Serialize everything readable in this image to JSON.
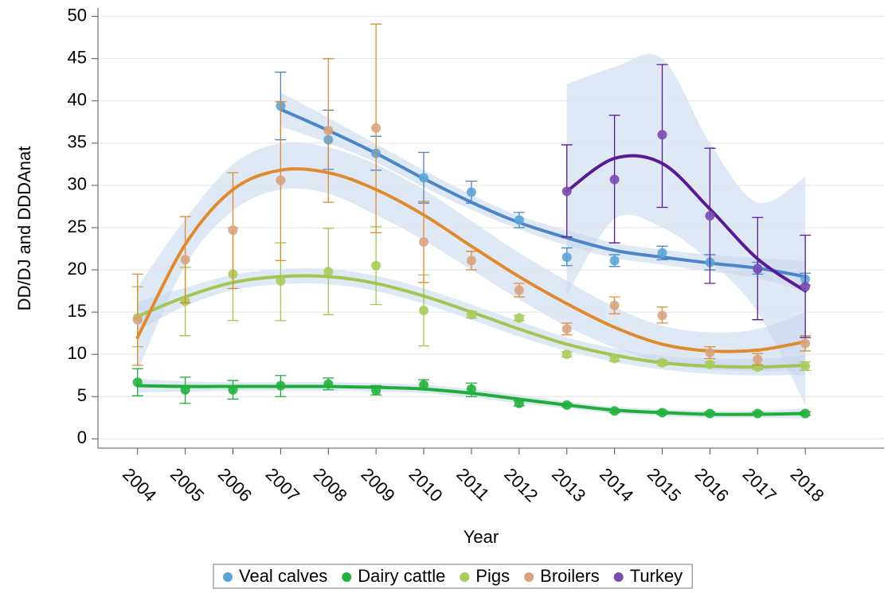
{
  "chart_data": {
    "type": "scatter",
    "x_label": "Year",
    "y_label": "DD/DJ and DDDAnat",
    "x": [
      2004,
      2005,
      2006,
      2007,
      2008,
      2009,
      2010,
      2011,
      2012,
      2013,
      2014,
      2015,
      2016,
      2017,
      2018
    ],
    "xlim": [
      2003.17,
      2019.65
    ],
    "xticks": [
      2004,
      2005,
      2006,
      2007,
      2008,
      2009,
      2010,
      2011,
      2012,
      2013,
      2014,
      2015,
      2016,
      2017,
      2018
    ],
    "ylim": [
      -1.1,
      51
    ],
    "yticks": [
      0,
      5,
      10,
      15,
      20,
      25,
      30,
      35,
      40,
      45,
      50
    ],
    "grid": true,
    "legend": "bottom",
    "band_color": "#c5d6ec",
    "series": [
      {
        "name": "Veal calves",
        "color": "#4a86c8",
        "point_color": "#5aa5d8",
        "values": [
          null,
          null,
          null,
          39.4,
          35.4,
          33.8,
          30.9,
          29.2,
          25.9,
          21.5,
          21.1,
          22.0,
          20.9,
          20.2,
          18.9
        ],
        "error_low": [
          null,
          null,
          null,
          35.4,
          31.9,
          31.8,
          27.9,
          27.9,
          25.0,
          20.5,
          20.4,
          21.2,
          20.0,
          19.5,
          18.2
        ],
        "error_high": [
          null,
          null,
          null,
          43.4,
          38.9,
          35.8,
          33.9,
          30.5,
          26.8,
          22.6,
          21.8,
          22.8,
          21.8,
          20.9,
          19.6
        ],
        "fit": [
          null,
          null,
          null,
          39.0,
          36.5,
          33.8,
          30.8,
          28.0,
          25.6,
          23.8,
          22.3,
          21.5,
          20.8,
          20.2,
          19.2
        ],
        "band_low": [
          null,
          null,
          null,
          37.0,
          35.0,
          32.7,
          29.8,
          27.1,
          24.8,
          22.9,
          21.4,
          20.6,
          19.8,
          19.0,
          17.4
        ],
        "band_high": [
          null,
          null,
          null,
          41.0,
          38.0,
          34.9,
          31.8,
          28.9,
          26.4,
          24.7,
          23.2,
          22.4,
          21.8,
          21.4,
          21.0
        ]
      },
      {
        "name": "Dairy cattle",
        "color": "#1fae3a",
        "point_color": "#22b33e",
        "values": [
          6.7,
          5.8,
          5.8,
          6.3,
          6.5,
          5.7,
          6.4,
          5.9,
          4.2,
          4.0,
          3.3,
          3.1,
          3.0,
          3.0,
          3.0
        ],
        "error_low": [
          5.1,
          4.2,
          4.7,
          5.0,
          5.8,
          5.2,
          5.8,
          5.0,
          3.9,
          3.8,
          3.1,
          2.9,
          2.8,
          2.8,
          2.8
        ],
        "error_high": [
          8.3,
          7.3,
          6.9,
          7.5,
          7.2,
          6.3,
          7.0,
          6.6,
          4.5,
          4.2,
          3.5,
          3.3,
          3.2,
          3.2,
          3.2
        ],
        "fit": [
          6.3,
          6.2,
          6.2,
          6.2,
          6.2,
          6.1,
          5.9,
          5.4,
          4.7,
          4.0,
          3.4,
          3.1,
          2.9,
          2.9,
          3.0
        ],
        "band_low": [
          5.5,
          5.6,
          5.7,
          5.7,
          5.7,
          5.6,
          5.4,
          4.9,
          4.2,
          3.6,
          3.0,
          2.7,
          2.5,
          2.5,
          2.4
        ],
        "band_high": [
          7.1,
          6.8,
          6.7,
          6.7,
          6.7,
          6.6,
          6.4,
          5.9,
          5.2,
          4.4,
          3.8,
          3.5,
          3.3,
          3.3,
          3.6
        ]
      },
      {
        "name": "Pigs",
        "color": "#a2c653",
        "point_color": "#a8cc5a",
        "values": [
          14.3,
          16.3,
          19.5,
          18.7,
          19.8,
          20.5,
          15.2,
          14.7,
          14.3,
          10.0,
          9.5,
          9.0,
          8.8,
          8.5,
          8.6
        ],
        "error_low": [
          10.9,
          12.2,
          14.0,
          14.0,
          14.7,
          15.9,
          11.0,
          14.3,
          14.0,
          9.7,
          9.2,
          8.7,
          8.5,
          8.2,
          8.1
        ],
        "error_high": [
          18.0,
          20.3,
          25.0,
          23.2,
          24.9,
          25.1,
          19.4,
          15.1,
          14.6,
          10.3,
          9.8,
          9.3,
          9.1,
          8.8,
          9.1
        ],
        "fit": [
          14.5,
          16.8,
          18.5,
          19.2,
          19.2,
          18.4,
          16.9,
          15.0,
          13.0,
          11.2,
          9.9,
          9.0,
          8.6,
          8.5,
          8.7
        ],
        "band_low": [
          12.8,
          15.7,
          17.6,
          18.3,
          18.3,
          17.5,
          16.0,
          14.1,
          12.1,
          10.4,
          9.1,
          8.2,
          7.7,
          7.5,
          7.6
        ],
        "band_high": [
          16.2,
          17.9,
          19.4,
          20.1,
          20.1,
          19.3,
          17.8,
          15.9,
          13.9,
          12.0,
          10.7,
          9.8,
          9.5,
          9.5,
          9.8
        ]
      },
      {
        "name": "Broilers",
        "color": "#e08a30",
        "point_color": "#d9a37e",
        "values": [
          14.1,
          21.2,
          24.7,
          30.6,
          36.5,
          36.8,
          23.3,
          21.1,
          17.6,
          13.0,
          15.8,
          14.6,
          10.2,
          9.4,
          11.3
        ],
        "error_low": [
          8.7,
          16.1,
          17.8,
          21.1,
          28.0,
          24.4,
          18.5,
          20.0,
          16.8,
          12.3,
          14.8,
          13.7,
          9.5,
          8.7,
          10.4
        ],
        "error_high": [
          19.5,
          26.3,
          31.5,
          39.9,
          45.0,
          49.1,
          28.1,
          22.2,
          18.4,
          13.7,
          16.8,
          15.6,
          10.9,
          10.1,
          12.2
        ],
        "fit": [
          12.0,
          23.0,
          29.5,
          31.8,
          31.5,
          29.5,
          26.5,
          22.8,
          19.2,
          16.0,
          13.2,
          11.2,
          10.4,
          10.5,
          11.5
        ],
        "band_low": [
          8.0,
          20.5,
          27.0,
          29.5,
          29.0,
          26.5,
          23.5,
          20.0,
          16.5,
          13.3,
          10.8,
          9.0,
          8.2,
          8.0,
          8.0
        ],
        "band_high": [
          18.0,
          26.0,
          32.5,
          35.0,
          34.5,
          32.5,
          29.5,
          25.8,
          22.0,
          18.7,
          15.6,
          13.4,
          12.6,
          13.0,
          15.0
        ]
      },
      {
        "name": "Turkey",
        "color": "#5a1a96",
        "point_color": "#7a4cb0",
        "values": [
          null,
          null,
          null,
          null,
          null,
          null,
          null,
          null,
          null,
          29.3,
          30.7,
          36.0,
          26.4,
          20.1,
          18.0
        ],
        "error_low": [
          null,
          null,
          null,
          null,
          null,
          null,
          null,
          null,
          null,
          23.9,
          23.2,
          27.4,
          18.4,
          14.1,
          12.0
        ],
        "error_high": [
          null,
          null,
          null,
          null,
          null,
          null,
          null,
          null,
          null,
          34.8,
          38.3,
          44.3,
          34.4,
          26.2,
          24.1
        ],
        "fit": [
          null,
          null,
          null,
          null,
          null,
          null,
          null,
          null,
          null,
          29.3,
          33.2,
          32.6,
          27.2,
          21.3,
          17.5
        ],
        "band_low": [
          null,
          null,
          null,
          null,
          null,
          null,
          null,
          null,
          null,
          17.0,
          26.0,
          25.0,
          21.0,
          15.0,
          4.0
        ],
        "band_high": [
          null,
          null,
          null,
          null,
          null,
          null,
          null,
          null,
          null,
          42.0,
          44.0,
          45.0,
          35.0,
          28.0,
          31.0
        ]
      }
    ]
  }
}
